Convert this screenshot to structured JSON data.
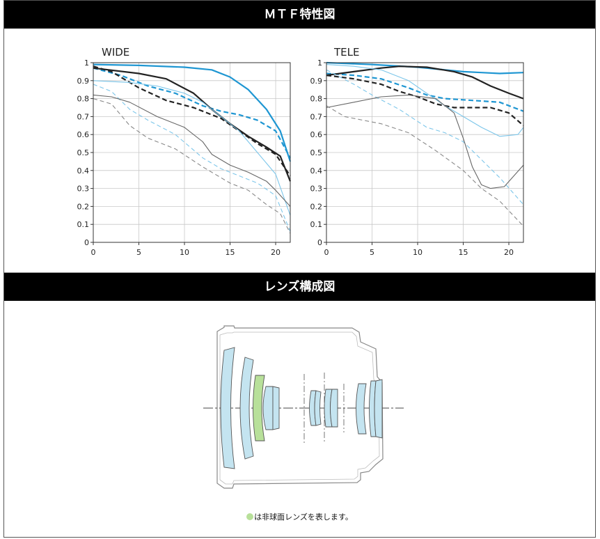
{
  "headers": {
    "mtf": "ＭＴＦ特性図",
    "lens": "レンズ構成図"
  },
  "caption": {
    "text": "は非球面レンズを表します。"
  },
  "colors": {
    "blue": "#1e96d2",
    "light_blue": "#7cc6ea",
    "black": "#222222",
    "gray": "#666666",
    "gray_light": "#888888",
    "aspherical": "#b8e09a",
    "lens_glass": "#c4e4f0"
  },
  "chart_data": [
    {
      "type": "line",
      "title": "WIDE",
      "xlabel": "",
      "ylabel": "",
      "xlim": [
        0,
        21.6
      ],
      "ylim": [
        0,
        1
      ],
      "xticks": [
        "0",
        "5",
        "10",
        "15",
        "20"
      ],
      "yticks": [
        "0",
        "0.1",
        "0.2",
        "0.3",
        "0.4",
        "0.5",
        "0.6",
        "0.7",
        "0.8",
        "0.9",
        "1"
      ],
      "grid": true,
      "series": [
        {
          "color": "blue",
          "dash": false,
          "width": 2.2,
          "points": [
            [
              0,
              0.99
            ],
            [
              5,
              0.985
            ],
            [
              10,
              0.975
            ],
            [
              13,
              0.96
            ],
            [
              15,
              0.92
            ],
            [
              17,
              0.85
            ],
            [
              19,
              0.74
            ],
            [
              20.5,
              0.62
            ],
            [
              21.6,
              0.45
            ]
          ]
        },
        {
          "color": "blue",
          "dash": true,
          "width": 2.2,
          "points": [
            [
              0,
              0.97
            ],
            [
              3,
              0.93
            ],
            [
              6,
              0.87
            ],
            [
              9,
              0.83
            ],
            [
              12,
              0.76
            ],
            [
              14,
              0.73
            ],
            [
              16,
              0.71
            ],
            [
              18,
              0.68
            ],
            [
              20,
              0.62
            ],
            [
              21.6,
              0.47
            ]
          ]
        },
        {
          "color": "black",
          "dash": false,
          "width": 2.2,
          "points": [
            [
              0,
              0.97
            ],
            [
              5,
              0.94
            ],
            [
              8,
              0.91
            ],
            [
              11,
              0.83
            ],
            [
              13,
              0.74
            ],
            [
              15,
              0.66
            ],
            [
              17,
              0.59
            ],
            [
              19,
              0.53
            ],
            [
              20.5,
              0.48
            ],
            [
              21.6,
              0.34
            ]
          ]
        },
        {
          "color": "black",
          "dash": true,
          "width": 2.2,
          "points": [
            [
              0,
              0.98
            ],
            [
              2,
              0.95
            ],
            [
              5,
              0.86
            ],
            [
              8,
              0.79
            ],
            [
              11,
              0.75
            ],
            [
              14,
              0.69
            ],
            [
              16,
              0.62
            ],
            [
              18,
              0.55
            ],
            [
              20,
              0.49
            ],
            [
              21.6,
              0.37
            ]
          ]
        },
        {
          "color": "light_blue",
          "dash": false,
          "width": 1.1,
          "points": [
            [
              0,
              0.9
            ],
            [
              4,
              0.89
            ],
            [
              7,
              0.87
            ],
            [
              10,
              0.83
            ],
            [
              12,
              0.78
            ],
            [
              14,
              0.7
            ],
            [
              16,
              0.62
            ],
            [
              18,
              0.5
            ],
            [
              20,
              0.38
            ],
            [
              21.6,
              0.15
            ]
          ]
        },
        {
          "color": "light_blue",
          "dash": true,
          "width": 1.1,
          "points": [
            [
              0,
              0.88
            ],
            [
              2,
              0.84
            ],
            [
              4,
              0.74
            ],
            [
              6,
              0.68
            ],
            [
              9,
              0.6
            ],
            [
              12,
              0.47
            ],
            [
              14,
              0.41
            ],
            [
              16,
              0.37
            ],
            [
              18,
              0.33
            ],
            [
              20,
              0.26
            ],
            [
              21.6,
              0.06
            ]
          ]
        },
        {
          "color": "gray",
          "dash": false,
          "width": 1.1,
          "points": [
            [
              0,
              0.82
            ],
            [
              2,
              0.81
            ],
            [
              4,
              0.78
            ],
            [
              7,
              0.7
            ],
            [
              10,
              0.64
            ],
            [
              12,
              0.56
            ],
            [
              13,
              0.49
            ],
            [
              15,
              0.43
            ],
            [
              17,
              0.39
            ],
            [
              19,
              0.34
            ],
            [
              20,
              0.29
            ],
            [
              21.6,
              0.2
            ]
          ]
        },
        {
          "color": "gray_light",
          "dash": true,
          "width": 1.1,
          "points": [
            [
              0,
              0.8
            ],
            [
              2,
              0.77
            ],
            [
              4,
              0.65
            ],
            [
              6,
              0.58
            ],
            [
              9,
              0.52
            ],
            [
              12,
              0.42
            ],
            [
              15,
              0.33
            ],
            [
              17,
              0.29
            ],
            [
              19,
              0.21
            ],
            [
              20.5,
              0.16
            ],
            [
              21.6,
              0.05
            ]
          ]
        }
      ]
    },
    {
      "type": "line",
      "title": "TELE",
      "xlabel": "",
      "ylabel": "",
      "xlim": [
        0,
        21.6
      ],
      "ylim": [
        0,
        1
      ],
      "xticks": [
        "0",
        "5",
        "10",
        "15",
        "20"
      ],
      "yticks": [
        "0",
        "0.1",
        "0.2",
        "0.3",
        "0.4",
        "0.5",
        "0.6",
        "0.7",
        "0.8",
        "0.9",
        "1"
      ],
      "grid": true,
      "series": [
        {
          "color": "blue",
          "dash": false,
          "width": 2.2,
          "points": [
            [
              0,
              1.0
            ],
            [
              5,
              0.99
            ],
            [
              10,
              0.975
            ],
            [
              13,
              0.96
            ],
            [
              15,
              0.95
            ],
            [
              17,
              0.945
            ],
            [
              19,
              0.94
            ],
            [
              21.6,
              0.945
            ]
          ]
        },
        {
          "color": "blue",
          "dash": true,
          "width": 2.2,
          "points": [
            [
              0,
              0.94
            ],
            [
              3,
              0.93
            ],
            [
              6,
              0.91
            ],
            [
              9,
              0.86
            ],
            [
              11,
              0.82
            ],
            [
              13,
              0.8
            ],
            [
              16,
              0.79
            ],
            [
              19,
              0.78
            ],
            [
              21.6,
              0.73
            ]
          ]
        },
        {
          "color": "black",
          "dash": false,
          "width": 2.2,
          "points": [
            [
              0,
              0.93
            ],
            [
              3,
              0.95
            ],
            [
              6,
              0.97
            ],
            [
              8,
              0.98
            ],
            [
              11,
              0.975
            ],
            [
              14,
              0.95
            ],
            [
              16,
              0.92
            ],
            [
              18,
              0.87
            ],
            [
              20,
              0.83
            ],
            [
              21.6,
              0.8
            ]
          ]
        },
        {
          "color": "black",
          "dash": true,
          "width": 2.2,
          "points": [
            [
              0,
              0.93
            ],
            [
              3,
              0.91
            ],
            [
              6,
              0.88
            ],
            [
              8,
              0.84
            ],
            [
              10,
              0.81
            ],
            [
              12,
              0.77
            ],
            [
              14,
              0.75
            ],
            [
              16,
              0.75
            ],
            [
              18,
              0.75
            ],
            [
              20,
              0.72
            ],
            [
              21.6,
              0.65
            ]
          ]
        },
        {
          "color": "light_blue",
          "dash": false,
          "width": 1.1,
          "points": [
            [
              0,
              0.99
            ],
            [
              3,
              0.98
            ],
            [
              6,
              0.96
            ],
            [
              9,
              0.9
            ],
            [
              11,
              0.83
            ],
            [
              13,
              0.76
            ],
            [
              15,
              0.7
            ],
            [
              17,
              0.64
            ],
            [
              19,
              0.59
            ],
            [
              21,
              0.6
            ],
            [
              21.6,
              0.64
            ]
          ]
        },
        {
          "color": "light_blue",
          "dash": true,
          "width": 1.1,
          "points": [
            [
              0,
              0.96
            ],
            [
              3,
              0.88
            ],
            [
              5,
              0.82
            ],
            [
              8,
              0.74
            ],
            [
              11,
              0.64
            ],
            [
              13,
              0.61
            ],
            [
              15,
              0.56
            ],
            [
              17,
              0.46
            ],
            [
              19,
              0.36
            ],
            [
              21.6,
              0.21
            ]
          ]
        },
        {
          "color": "gray",
          "dash": false,
          "width": 1.1,
          "points": [
            [
              0,
              0.75
            ],
            [
              3,
              0.78
            ],
            [
              6,
              0.81
            ],
            [
              9,
              0.82
            ],
            [
              12,
              0.8
            ],
            [
              14,
              0.72
            ],
            [
              15,
              0.58
            ],
            [
              16,
              0.42
            ],
            [
              17,
              0.32
            ],
            [
              18,
              0.3
            ],
            [
              19.5,
              0.31
            ],
            [
              21.6,
              0.43
            ]
          ]
        },
        {
          "color": "gray_light",
          "dash": true,
          "width": 1.1,
          "points": [
            [
              0,
              0.76
            ],
            [
              2,
              0.7
            ],
            [
              4,
              0.68
            ],
            [
              6,
              0.66
            ],
            [
              9,
              0.61
            ],
            [
              12,
              0.51
            ],
            [
              15,
              0.4
            ],
            [
              17,
              0.3
            ],
            [
              19,
              0.23
            ],
            [
              21.6,
              0.09
            ]
          ]
        }
      ]
    }
  ]
}
